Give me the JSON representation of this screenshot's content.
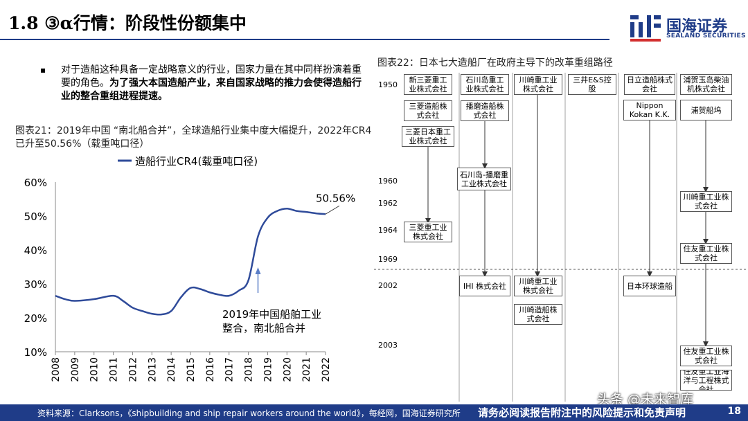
{
  "header": {
    "title": "1.8 ③α行情：阶段性份额集中",
    "logo_cn": "国海证券",
    "logo_en": "SEALAND SECURITIES"
  },
  "bullet": {
    "normal": "对于造船这种具备一定战略意义的行业，国家力量在其中同样扮演着重要的角色。",
    "bold": "为了强大本国造船产业，来自国家战略的推力会使得造船行业的整合重组进程提速。"
  },
  "fig21": {
    "title": "图表21：2019年中国 “南北船合并”，全球造船行业集中度大幅提升，2022年CR4已升至50.56%（载重吨口径）"
  },
  "chart_data": {
    "type": "line",
    "legend": "造船行业CR4(载重吨口径)",
    "legend_position": "top",
    "x": [
      2008,
      2009,
      2010,
      2011,
      2012,
      2013,
      2014,
      2015,
      2016,
      2017,
      2018,
      2019,
      2020,
      2021,
      2022
    ],
    "x_tick_labels": [
      "2008",
      "2009",
      "2010",
      "2011",
      "2012",
      "2013",
      "2014",
      "2015",
      "2016",
      "2017",
      "2018",
      "2019",
      "2020",
      "2021",
      "2022"
    ],
    "series": [
      {
        "name": "造船行业CR4(载重吨口径)",
        "points": [
          [
            2008,
            26.5
          ],
          [
            2008.5,
            25.5
          ],
          [
            2009,
            25
          ],
          [
            2010,
            25.5
          ],
          [
            2011,
            26.5
          ],
          [
            2011.5,
            25
          ],
          [
            2012,
            23
          ],
          [
            2012.5,
            22
          ],
          [
            2013,
            21.2
          ],
          [
            2013.5,
            21
          ],
          [
            2014,
            22
          ],
          [
            2014.5,
            26
          ],
          [
            2015,
            28.8
          ],
          [
            2015.5,
            28.5
          ],
          [
            2016,
            27.5
          ],
          [
            2016.5,
            26.8
          ],
          [
            2017,
            26.5
          ],
          [
            2017.5,
            28
          ],
          [
            2018,
            31
          ],
          [
            2018.5,
            44
          ],
          [
            2019,
            49.5
          ],
          [
            2019.5,
            51.5
          ],
          [
            2020,
            52.2
          ],
          [
            2020.5,
            51.5
          ],
          [
            2021,
            51.2
          ],
          [
            2021.5,
            50.8
          ],
          [
            2022,
            50.56
          ]
        ],
        "color": "#2f4b9a"
      }
    ],
    "ylim": [
      10,
      60
    ],
    "y_ticks": [
      10,
      20,
      30,
      40,
      50,
      60
    ],
    "y_tick_labels": [
      "10%",
      "20%",
      "30%",
      "40%",
      "50%",
      "60%"
    ],
    "grid": false,
    "annotations": {
      "end_label": "50.56%",
      "event_label_line1": "2019年中国船舶工业",
      "event_label_line2": "整合，南北船合并",
      "event_arrow_x": 2018.5
    }
  },
  "fig22": {
    "title": "图表22：日本七大造船厂在政府主导下的改革重组路径",
    "years": [
      "1950",
      "1960",
      "1962",
      "1964",
      "1969",
      "2002",
      "2003"
    ],
    "boxes": {
      "mitsubishi_new": "新三菱重工业株式会社",
      "mitsubishi_ship": "三菱造船株式会社",
      "mitsubishi_japan": "三菱日本重工业株式会社",
      "mitsubishi_heavy": "三菱重工业株式会社",
      "ishikawajima": "石川岛重工业株式会社",
      "harima": "播磨造船株式会社",
      "ishikawajima_harima": "石川岛-播磨重工业株式会社",
      "ihi": "IHI 株式会社",
      "kawasaki_1950": "川崎重工业株式会社",
      "kawasaki_2002": "川崎重工业株式会社",
      "kawasaki_ship": "川崎造船株式会社",
      "mitsui": "三井E&S控股",
      "hitachi": "日立造船株式会社",
      "nkk": "Nippon Kokan K.K.",
      "jmu": "日本环球造船",
      "uraga_tamashima": "浦贺玉岛柴油机株式会社",
      "uraga_dock": "浦贺船坞",
      "kawasaki_1962": "川崎重工业株式会社",
      "sumitomo_1969": "住友重工业株式会社",
      "sumitomo_2003": "住友重工业株式会社",
      "sumitomo_marine": "住友重工业海洋与工程株式会社"
    }
  },
  "watermark": "头条 @未来智库",
  "footer": {
    "source": "资料来源：Clarksons，《shipbuilding and ship repair workers around the world》，每经网，国海证券研究所",
    "disclaimer": "请务必阅读报告附注中的风险提示和免责声明",
    "page": "18"
  }
}
